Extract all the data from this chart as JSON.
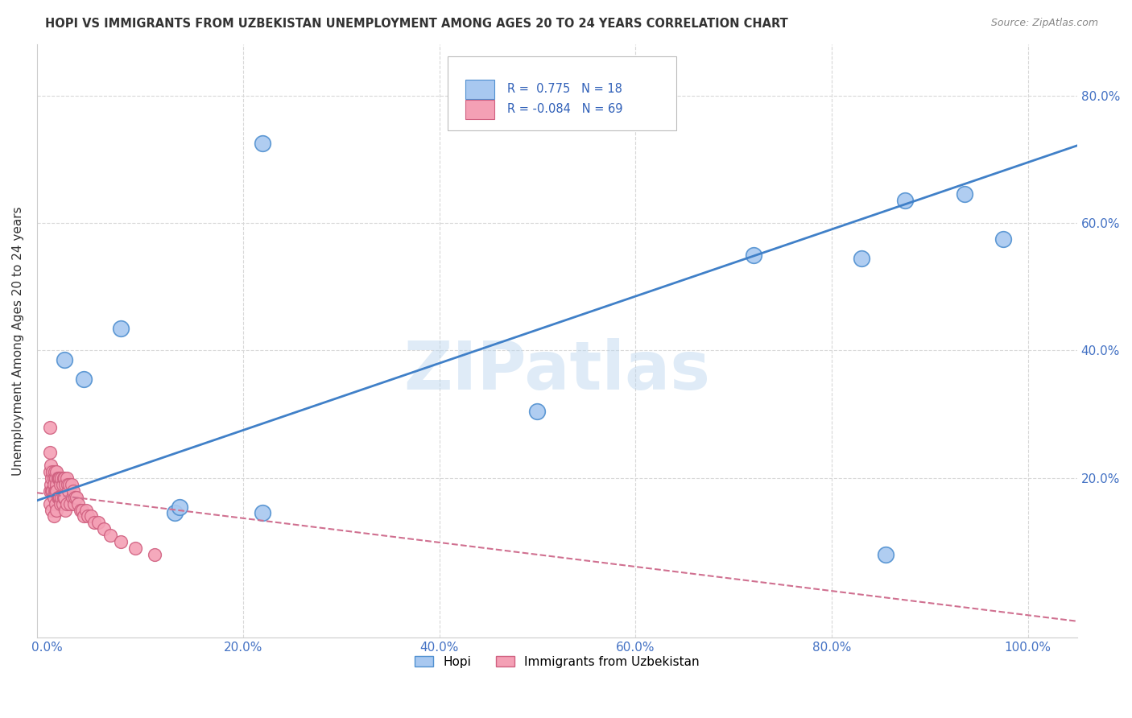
{
  "title": "HOPI VS IMMIGRANTS FROM UZBEKISTAN UNEMPLOYMENT AMONG AGES 20 TO 24 YEARS CORRELATION CHART",
  "source": "Source: ZipAtlas.com",
  "ylabel": "Unemployment Among Ages 20 to 24 years",
  "xlim": [
    -0.01,
    1.05
  ],
  "ylim": [
    -0.05,
    0.88
  ],
  "xticks": [
    0.0,
    0.2,
    0.4,
    0.6,
    0.8,
    1.0
  ],
  "yticks": [
    0.0,
    0.2,
    0.4,
    0.6,
    0.8
  ],
  "xticklabels": [
    "0.0%",
    "20.0%",
    "40.0%",
    "60.0%",
    "80.0%",
    "100.0%"
  ],
  "yticklabels": [
    "",
    "20.0%",
    "40.0%",
    "60.0%",
    "80.0%"
  ],
  "watermark": "ZIPatlas",
  "hopi_color": "#a8c8f0",
  "uzbek_color": "#f4a0b5",
  "hopi_edge_color": "#5090d0",
  "uzbek_edge_color": "#d06080",
  "hopi_line_color": "#4080c8",
  "uzbek_line_color": "#d07090",
  "hopi_x": [
    0.018,
    0.038,
    0.075,
    0.13,
    0.135,
    0.22,
    0.22,
    0.5,
    0.72,
    0.83,
    0.855,
    0.875,
    0.935,
    0.975
  ],
  "hopi_y": [
    0.385,
    0.355,
    0.435,
    0.145,
    0.155,
    0.145,
    0.725,
    0.305,
    0.55,
    0.545,
    0.08,
    0.635,
    0.645,
    0.575
  ],
  "uzbek_x": [
    0.003,
    0.003,
    0.003,
    0.003,
    0.003,
    0.004,
    0.004,
    0.005,
    0.005,
    0.005,
    0.006,
    0.006,
    0.007,
    0.007,
    0.007,
    0.007,
    0.008,
    0.008,
    0.009,
    0.009,
    0.009,
    0.01,
    0.01,
    0.01,
    0.01,
    0.011,
    0.011,
    0.012,
    0.012,
    0.013,
    0.013,
    0.014,
    0.014,
    0.015,
    0.015,
    0.016,
    0.016,
    0.017,
    0.017,
    0.018,
    0.018,
    0.019,
    0.019,
    0.02,
    0.02,
    0.021,
    0.022,
    0.023,
    0.024,
    0.025,
    0.026,
    0.027,
    0.028,
    0.029,
    0.03,
    0.032,
    0.034,
    0.036,
    0.038,
    0.04,
    0.042,
    0.045,
    0.048,
    0.052,
    0.058,
    0.065,
    0.075,
    0.09,
    0.11
  ],
  "uzbek_y": [
    0.28,
    0.24,
    0.21,
    0.18,
    0.16,
    0.22,
    0.19,
    0.2,
    0.18,
    0.15,
    0.21,
    0.18,
    0.2,
    0.19,
    0.17,
    0.14,
    0.21,
    0.18,
    0.2,
    0.18,
    0.16,
    0.21,
    0.19,
    0.18,
    0.15,
    0.2,
    0.17,
    0.2,
    0.17,
    0.2,
    0.17,
    0.19,
    0.16,
    0.2,
    0.17,
    0.19,
    0.16,
    0.2,
    0.17,
    0.2,
    0.17,
    0.19,
    0.15,
    0.2,
    0.16,
    0.19,
    0.18,
    0.19,
    0.16,
    0.19,
    0.17,
    0.18,
    0.16,
    0.17,
    0.17,
    0.16,
    0.15,
    0.15,
    0.14,
    0.15,
    0.14,
    0.14,
    0.13,
    0.13,
    0.12,
    0.11,
    0.1,
    0.09,
    0.08
  ],
  "hopi_line_x0": 0.0,
  "hopi_line_y0": 0.17,
  "hopi_line_x1": 1.0,
  "hopi_line_y1": 0.695,
  "uzbek_line_x0": 0.0,
  "uzbek_line_y0": 0.175,
  "uzbek_line_x1": 0.5,
  "uzbek_line_y1": 0.08,
  "background_color": "#ffffff",
  "grid_color": "#d8d8d8",
  "tick_color": "#4472c4",
  "title_color": "#333333",
  "source_color": "#888888"
}
